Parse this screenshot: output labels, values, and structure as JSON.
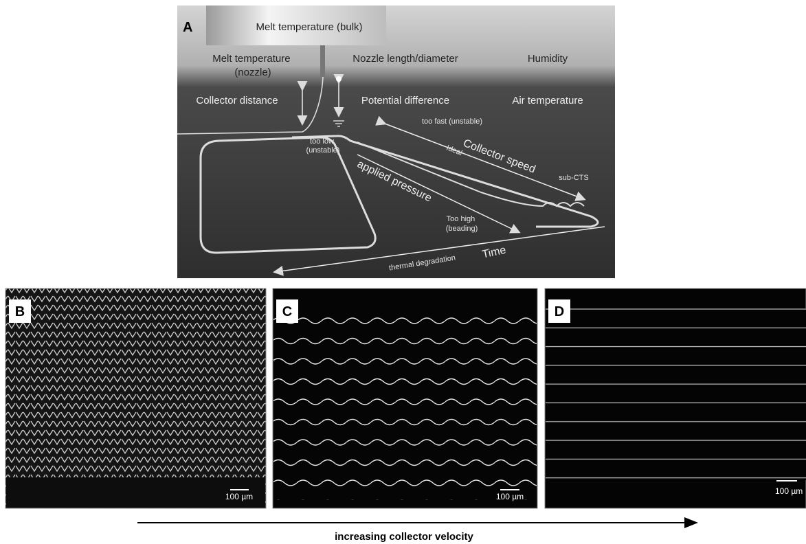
{
  "panel_a": {
    "label": "A",
    "annotations": {
      "melt_bulk": "Melt temperature (bulk)",
      "melt_nozzle": [
        "Melt temperature",
        "(nozzle)"
      ],
      "nozzle_length": "Nozzle length/diameter",
      "humidity": "Humidity",
      "collector_distance": "Collector distance",
      "potential_difference": "Potential difference",
      "air_temperature": "Air temperature",
      "too_fast": "too fast (unstable)",
      "collector_speed": "Collector speed",
      "ideal": "Ideal",
      "sub_cts": "sub-CTS",
      "too_low": [
        "too low",
        "(unstable)"
      ],
      "applied_pressure": "applied pressure",
      "too_high": [
        "Too high",
        "(beading)"
      ],
      "time": "Time",
      "thermal_degradation": "thermal degradation"
    }
  },
  "panels": [
    {
      "label": "B",
      "scale_bar": "100 µm"
    },
    {
      "label": "C",
      "scale_bar": "100 µm"
    },
    {
      "label": "D",
      "scale_bar": "100 µm"
    }
  ],
  "caption": "increasing collector velocity"
}
